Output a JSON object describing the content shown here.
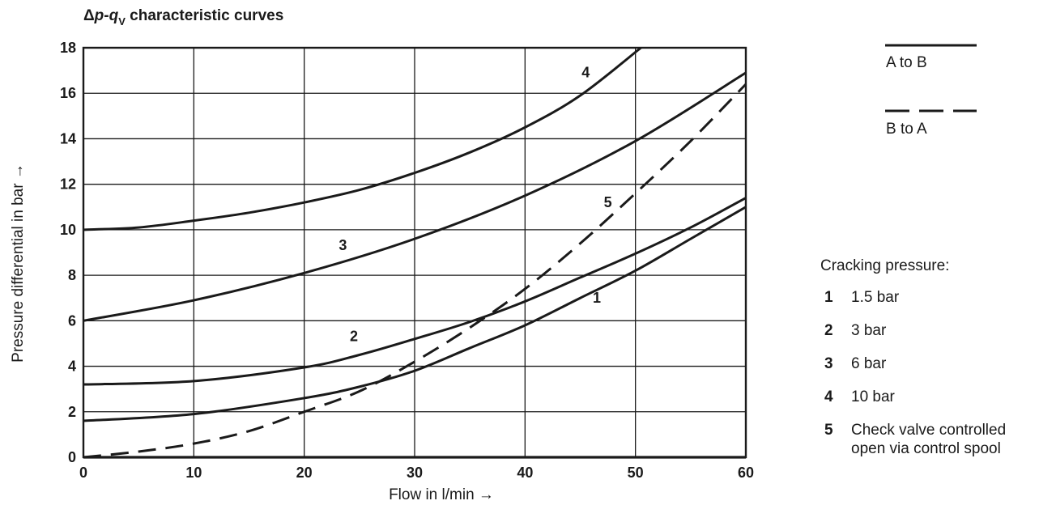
{
  "chart_data": {
    "type": "line",
    "title": {
      "delta": "Δ",
      "p": "p",
      "sep": "-",
      "q": "q",
      "sub": "V",
      "rest": " characteristic curves"
    },
    "xlabel": "Flow in l/min →",
    "ylabel": "Pressure differential in bar →",
    "xlim": [
      0,
      60
    ],
    "ylim": [
      0,
      18
    ],
    "xticks": [
      0,
      10,
      20,
      30,
      40,
      50,
      60
    ],
    "yticks": [
      0,
      2,
      4,
      6,
      8,
      10,
      12,
      14,
      16,
      18
    ],
    "grid": true,
    "series": [
      {
        "name": "1",
        "style": "solid",
        "x": [
          0,
          10,
          20,
          25,
          30,
          35,
          40,
          45,
          50,
          55,
          60
        ],
        "y": [
          1.6,
          1.9,
          2.6,
          3.1,
          3.8,
          4.8,
          5.8,
          7.0,
          8.2,
          9.6,
          11.0
        ]
      },
      {
        "name": "2",
        "style": "solid",
        "x": [
          0,
          10,
          20,
          25,
          30,
          35,
          40,
          45,
          50,
          55,
          60
        ],
        "y": [
          3.2,
          3.35,
          3.95,
          4.5,
          5.2,
          5.95,
          6.85,
          7.9,
          8.95,
          10.1,
          11.4
        ]
      },
      {
        "name": "3",
        "style": "solid",
        "x": [
          0,
          10,
          20,
          30,
          40,
          50,
          60
        ],
        "y": [
          6.0,
          6.9,
          8.1,
          9.6,
          11.5,
          13.9,
          16.9
        ]
      },
      {
        "name": "4",
        "style": "solid",
        "x": [
          0,
          5,
          10,
          15,
          20,
          25,
          30,
          35,
          40,
          45,
          50.5
        ],
        "y": [
          10.0,
          10.1,
          10.4,
          10.75,
          11.2,
          11.75,
          12.5,
          13.4,
          14.5,
          15.9,
          18.0
        ]
      },
      {
        "name": "5",
        "style": "dashed",
        "x": [
          0,
          5,
          10,
          15,
          20,
          25,
          30,
          35,
          40,
          45,
          50,
          55,
          60
        ],
        "y": [
          0.0,
          0.25,
          0.6,
          1.15,
          2.0,
          2.9,
          4.2,
          5.7,
          7.4,
          9.4,
          11.6,
          13.9,
          16.4
        ]
      }
    ],
    "curve_labels": [
      {
        "text": "1",
        "x": 46.5,
        "y": 6.8
      },
      {
        "text": "2",
        "x": 24.5,
        "y": 5.1
      },
      {
        "text": "3",
        "x": 23.5,
        "y": 9.1
      },
      {
        "text": "4",
        "x": 45.5,
        "y": 16.7
      },
      {
        "text": "5",
        "x": 47.5,
        "y": 11.0
      }
    ]
  },
  "legend": {
    "line_a": "A to B",
    "line_b": "B to A",
    "cracking_title": "Cracking pressure:",
    "items": [
      {
        "num": "1",
        "text": "1.5 bar"
      },
      {
        "num": "2",
        "text": "3 bar"
      },
      {
        "num": "3",
        "text": "6 bar"
      },
      {
        "num": "4",
        "text": "10 bar"
      },
      {
        "num": "5",
        "text": "Check valve controlled",
        "text2": "open via control spool"
      }
    ]
  }
}
